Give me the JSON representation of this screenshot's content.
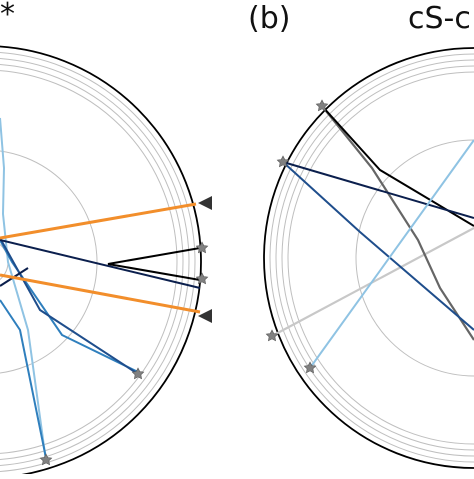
{
  "figure": {
    "left_panel_title_fragment": "*",
    "right_panel_label": "(b)",
    "right_panel_title_fragment": "cS-c"
  },
  "colors": {
    "boundary": "#000000",
    "grid": "#bfbfbf",
    "marker": "#808080",
    "orange": "#f28e2b",
    "navy": "#0b1f4d",
    "dark_blue": "#1f4e8c",
    "mid_blue": "#2f7fbd",
    "light_blue": "#8fc3e3",
    "gray_path": "#666666",
    "light_gray_path": "#c8c8c8"
  },
  "icons": {
    "boundary_event_marker": "star",
    "incoming_direction_marker": "triangle"
  }
}
